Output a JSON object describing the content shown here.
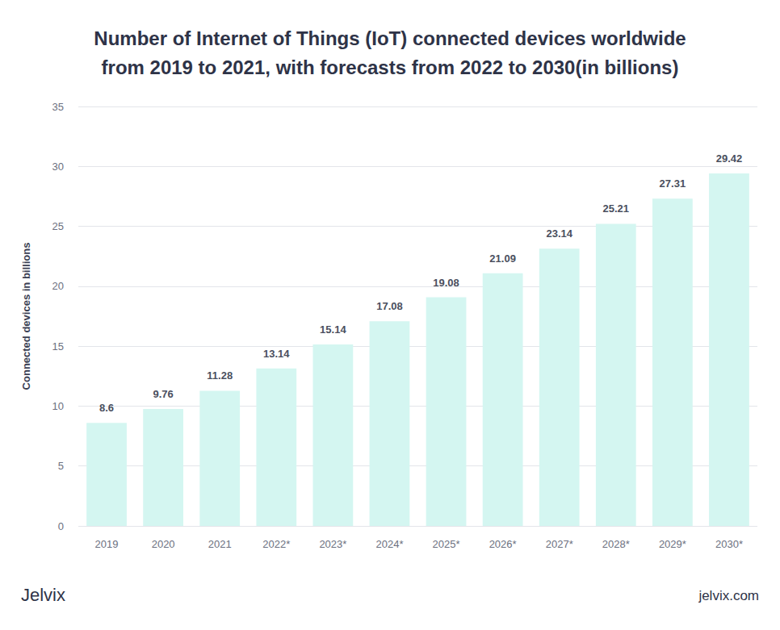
{
  "chart_data": {
    "type": "bar",
    "title": "Number of Internet of Things (IoT) connected devices worldwide\nfrom 2019 to 2021, with forecasts from 2022 to 2030(in billions)",
    "y_label": "Connected devices in billions",
    "categories": [
      "2019",
      "2020",
      "2021",
      "2022*",
      "2023*",
      "2024*",
      "2025*",
      "2026*",
      "2027*",
      "2028*",
      "2029*",
      "2030*"
    ],
    "values": [
      8.6,
      9.76,
      11.28,
      13.14,
      15.14,
      17.08,
      19.08,
      21.09,
      23.14,
      25.21,
      27.31,
      29.42
    ],
    "color": "#d4f6f1",
    "ylim": [
      0,
      35
    ],
    "yticks": [
      0,
      5,
      10,
      15,
      20,
      25,
      30,
      35
    ],
    "grid": true,
    "data_labels": true,
    "annotations": [
      "Jelvix",
      "jelvix.com"
    ]
  }
}
